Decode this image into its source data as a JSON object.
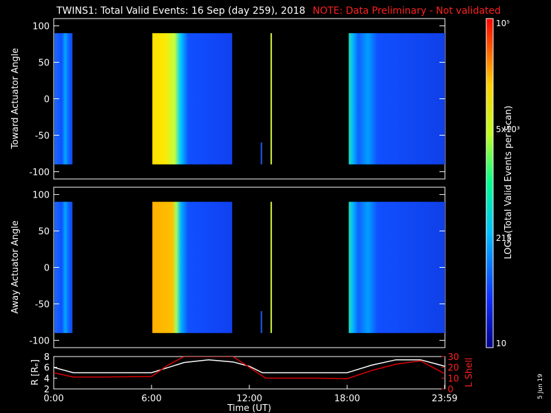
{
  "title_prefix": "TWINS1: Total Valid Events: 16 Sep (day 259), 2018",
  "title_note": "NOTE: Data Preliminary - Not validated",
  "date_stamp": "5 Jun 19",
  "colorbar": {
    "label": "LOG₁₀(Total Valid Events per Scan)",
    "ticks": [
      "10",
      "215",
      "5x10³",
      "10⁵"
    ]
  },
  "chart_data": [
    {
      "type": "heatmap",
      "ylabel": "Toward Actuator Angle",
      "yticks": [
        "100",
        "50",
        "0",
        "-50",
        "-100"
      ],
      "ylim": [
        -110,
        110
      ],
      "data_y_range": [
        -90,
        90
      ]
    },
    {
      "type": "heatmap",
      "ylabel": "Away Actuator Angle",
      "yticks": [
        "100",
        "50",
        "0",
        "-50",
        "-100"
      ],
      "ylim": [
        -110,
        110
      ],
      "data_y_range": [
        -90,
        90
      ]
    },
    {
      "type": "line",
      "xlabel": "Time (UT)",
      "xticks": [
        "0:00",
        "6:00",
        "12:00",
        "18:00",
        "23:59"
      ],
      "left_axis": {
        "label": "R [Rₑ]",
        "ticks": [
          "8",
          "6",
          "4",
          "2"
        ],
        "ylim": [
          2,
          8
        ]
      },
      "right_axis": {
        "label": "L Shell",
        "ticks": [
          "30",
          "20",
          "10",
          "0"
        ],
        "ylim": [
          0,
          30
        ]
      },
      "series": [
        {
          "name": "R [Rₑ]",
          "color": "#ffffff",
          "axis": "left",
          "x": [
            0,
            1.2,
            3,
            6,
            8,
            9.5,
            11,
            12,
            12.8,
            14,
            16,
            18,
            19.5,
            21,
            22.5,
            24
          ],
          "y": [
            6.0,
            5.0,
            5.0,
            5.0,
            6.9,
            7.4,
            7.0,
            6.2,
            5.0,
            5.0,
            5.0,
            5.0,
            6.4,
            7.4,
            7.4,
            6.2
          ]
        },
        {
          "name": "L Shell",
          "color": "#dd0000",
          "axis": "right",
          "x": [
            0,
            1.2,
            3,
            6,
            7,
            8,
            9.5,
            11,
            12,
            13,
            14,
            16,
            18,
            19.5,
            21,
            22.5,
            24
          ],
          "y": [
            15,
            11,
            11,
            11.5,
            22,
            30,
            30,
            30,
            20,
            10,
            10,
            10,
            9.5,
            17,
            23,
            26,
            14
          ]
        }
      ]
    }
  ],
  "time_coverage": {
    "segments": [
      {
        "start": 0.05,
        "end": 1.15,
        "intensity": "low"
      },
      {
        "start": 6.05,
        "end": 10.95,
        "intensity": "high"
      },
      {
        "start": 12.7,
        "end": 12.75,
        "intensity": "spike-blue"
      },
      {
        "start": 13.3,
        "end": 13.35,
        "intensity": "spike-yellow"
      },
      {
        "start": 18.1,
        "end": 24.0,
        "intensity": "low"
      }
    ]
  }
}
